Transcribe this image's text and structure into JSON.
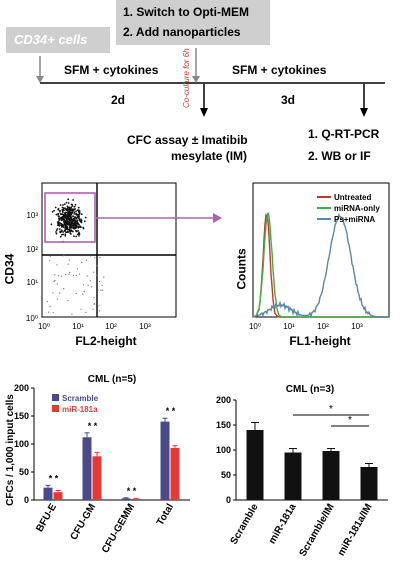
{
  "timeline": {
    "cd34_label": "CD34+ cells",
    "step1": "1. Switch to Opti-MEM",
    "step2": "2. Add nanoparticles",
    "sfm_left": "SFM + cytokines",
    "sfm_right": "SFM + cytokines",
    "coculture": "Co-culture for 6h",
    "dur_left": "2d",
    "dur_right": "3d",
    "cfc_line1": "CFC assay ± Imatibib",
    "cfc_line2": "mesylate (IM)",
    "out1": "1. Q-RT-PCR",
    "out2": "2. WB or IF"
  },
  "flow_left": {
    "ylabel": "CD34",
    "xlabel": "FL2-height",
    "x_ticks": [
      "10⁰",
      "10¹",
      "10²",
      "10³"
    ],
    "y_ticks": [
      "10⁰",
      "10¹",
      "10²",
      "10³"
    ],
    "colors": {
      "gate": "#b060b0",
      "arrow": "#b060b0"
    }
  },
  "flow_right": {
    "ylabel": "Counts",
    "xlabel": "FL1-height",
    "x_ticks": [
      "10⁰",
      "10¹",
      "10²",
      "10³"
    ],
    "legend": [
      {
        "label": "Untreated",
        "color": "#c0392b"
      },
      {
        "label": "miRNA-only",
        "color": "#3cb043"
      },
      {
        "label": "Ps+miRNA",
        "color": "#5b86a8"
      }
    ]
  },
  "chart_data": [
    {
      "type": "bar",
      "title": "CML (n=5)",
      "ylabel": "CFCs / 1,000 input cells",
      "ylim": [
        0,
        200
      ],
      "y_ticks": [
        "0",
        "50",
        "100",
        "150",
        "200"
      ],
      "categories": [
        "BFU-E",
        "CFU-GM",
        "CFU-GEMM",
        "Total"
      ],
      "series": [
        {
          "name": "Scramble",
          "color": "#4a4a8a",
          "values": [
            22,
            112,
            3,
            140
          ],
          "errors": [
            4,
            8,
            1,
            6
          ]
        },
        {
          "name": "miR-181a",
          "color": "#e53935",
          "values": [
            14,
            78,
            2,
            93
          ],
          "errors": [
            3,
            7,
            1,
            4
          ]
        }
      ],
      "annotations": [
        "* *",
        "* *",
        "* *",
        "* *"
      ]
    },
    {
      "type": "bar",
      "title": "CML (n=3)",
      "ylim": [
        0,
        200
      ],
      "y_ticks": [
        "0",
        "50",
        "100",
        "150",
        "200"
      ],
      "categories": [
        "Scramble",
        "miR-181a",
        "Scramble/IM",
        "miR-181a/IM"
      ],
      "values": [
        140,
        95,
        98,
        66
      ],
      "errors": [
        15,
        8,
        5,
        7
      ],
      "color": "#111111",
      "annotations": [
        "*",
        "*"
      ]
    }
  ]
}
